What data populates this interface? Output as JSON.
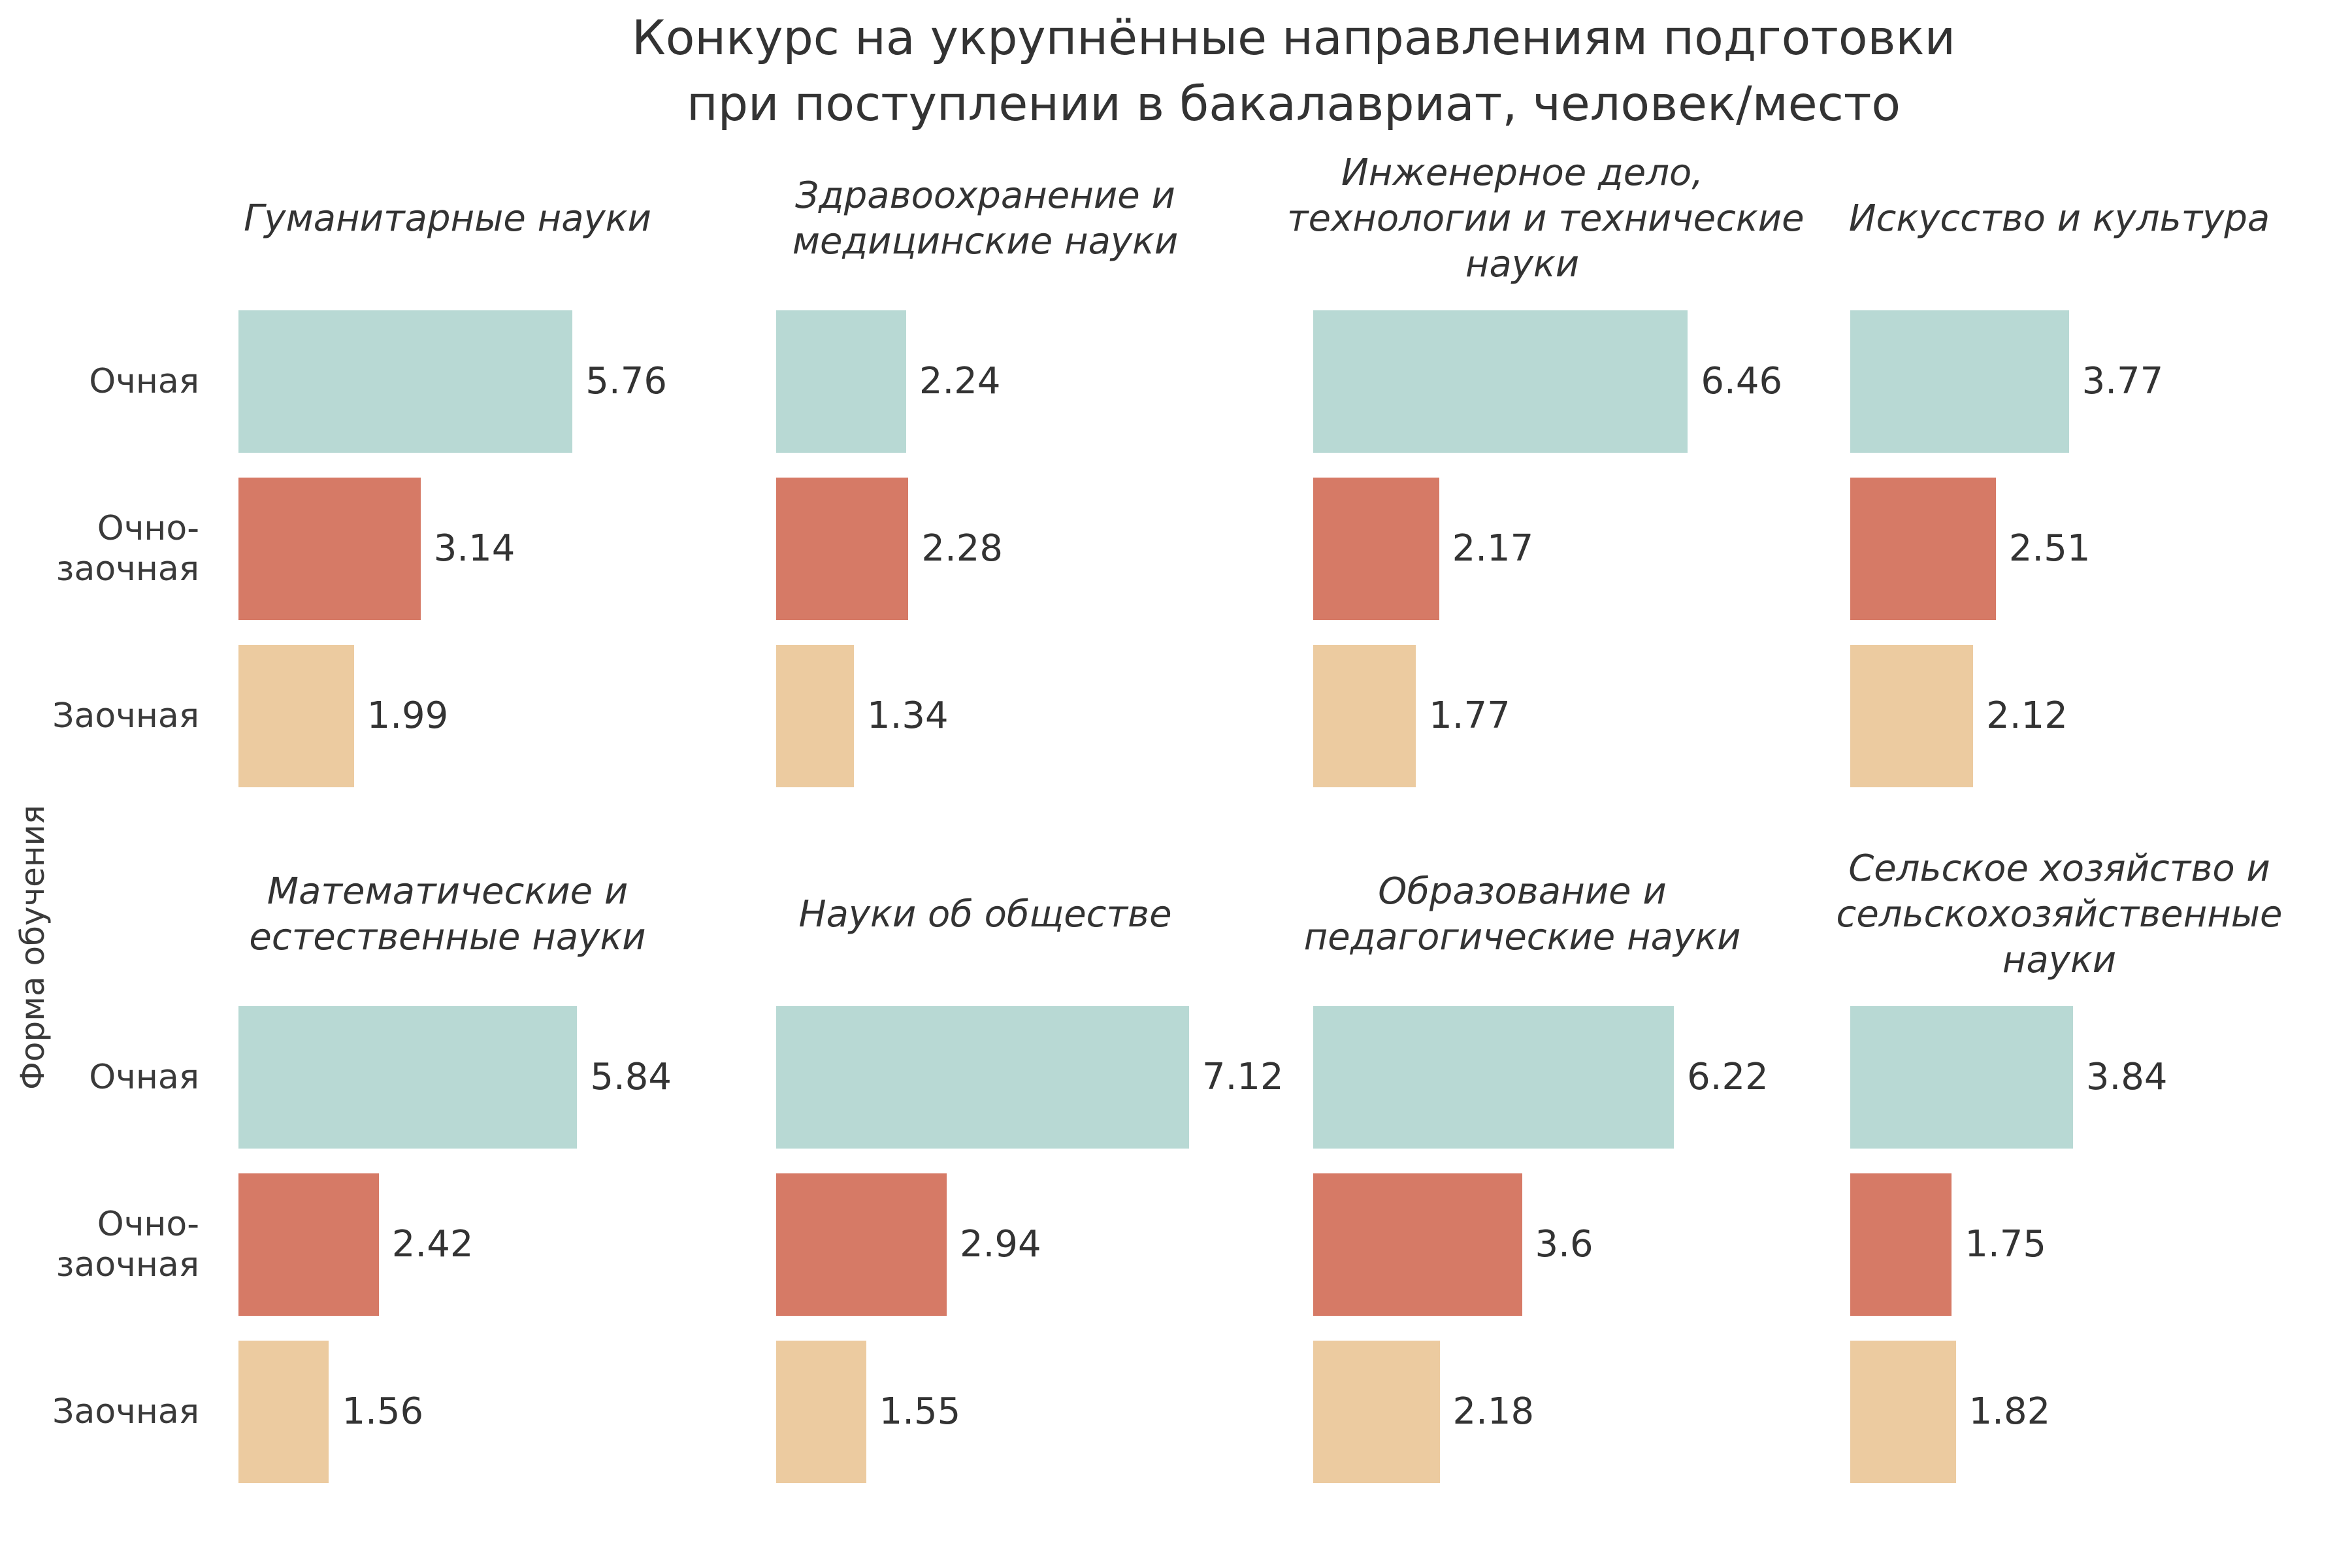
{
  "chart_data": {
    "type": "bar",
    "orientation": "horizontal",
    "title": [
      "Конкурс на укрупнённые направлениям подготовки",
      "при поступлении в бакалавриат, человек/место"
    ],
    "ylabel": "Форма обучения",
    "categories": [
      "Очная",
      "Очно-заочная",
      "Заочная"
    ],
    "category_lines": [
      [
        "Очная"
      ],
      [
        "Очно-",
        "заочная"
      ],
      [
        "Заочная"
      ]
    ],
    "colors": [
      "#b8d9d4",
      "#d67a66",
      "#eccba0"
    ],
    "xlim": [
      0,
      7.12
    ],
    "grid": false,
    "panels": [
      {
        "title": [
          "Гуманитарные науки"
        ],
        "values": [
          5.76,
          3.14,
          1.99
        ]
      },
      {
        "title": [
          "Здравоохранение и",
          "медицинские науки"
        ],
        "values": [
          2.24,
          2.28,
          1.34
        ]
      },
      {
        "title": [
          "Инженерное дело,",
          "технологии и технические",
          "науки"
        ],
        "values": [
          6.46,
          2.17,
          1.77
        ]
      },
      {
        "title": [
          "Искусство и культура"
        ],
        "values": [
          3.77,
          2.51,
          2.12
        ]
      },
      {
        "title": [
          "Математические и",
          "естественные науки"
        ],
        "values": [
          5.84,
          2.42,
          1.56
        ]
      },
      {
        "title": [
          "Науки об обществе"
        ],
        "values": [
          7.12,
          2.94,
          1.55
        ]
      },
      {
        "title": [
          "Образование и",
          "педагогические науки"
        ],
        "values": [
          6.22,
          3.6,
          2.18
        ]
      },
      {
        "title": [
          "Сельское хозяйство и",
          "сельскохозяйственные",
          "науки"
        ],
        "values": [
          3.84,
          1.75,
          1.82
        ]
      }
    ]
  }
}
